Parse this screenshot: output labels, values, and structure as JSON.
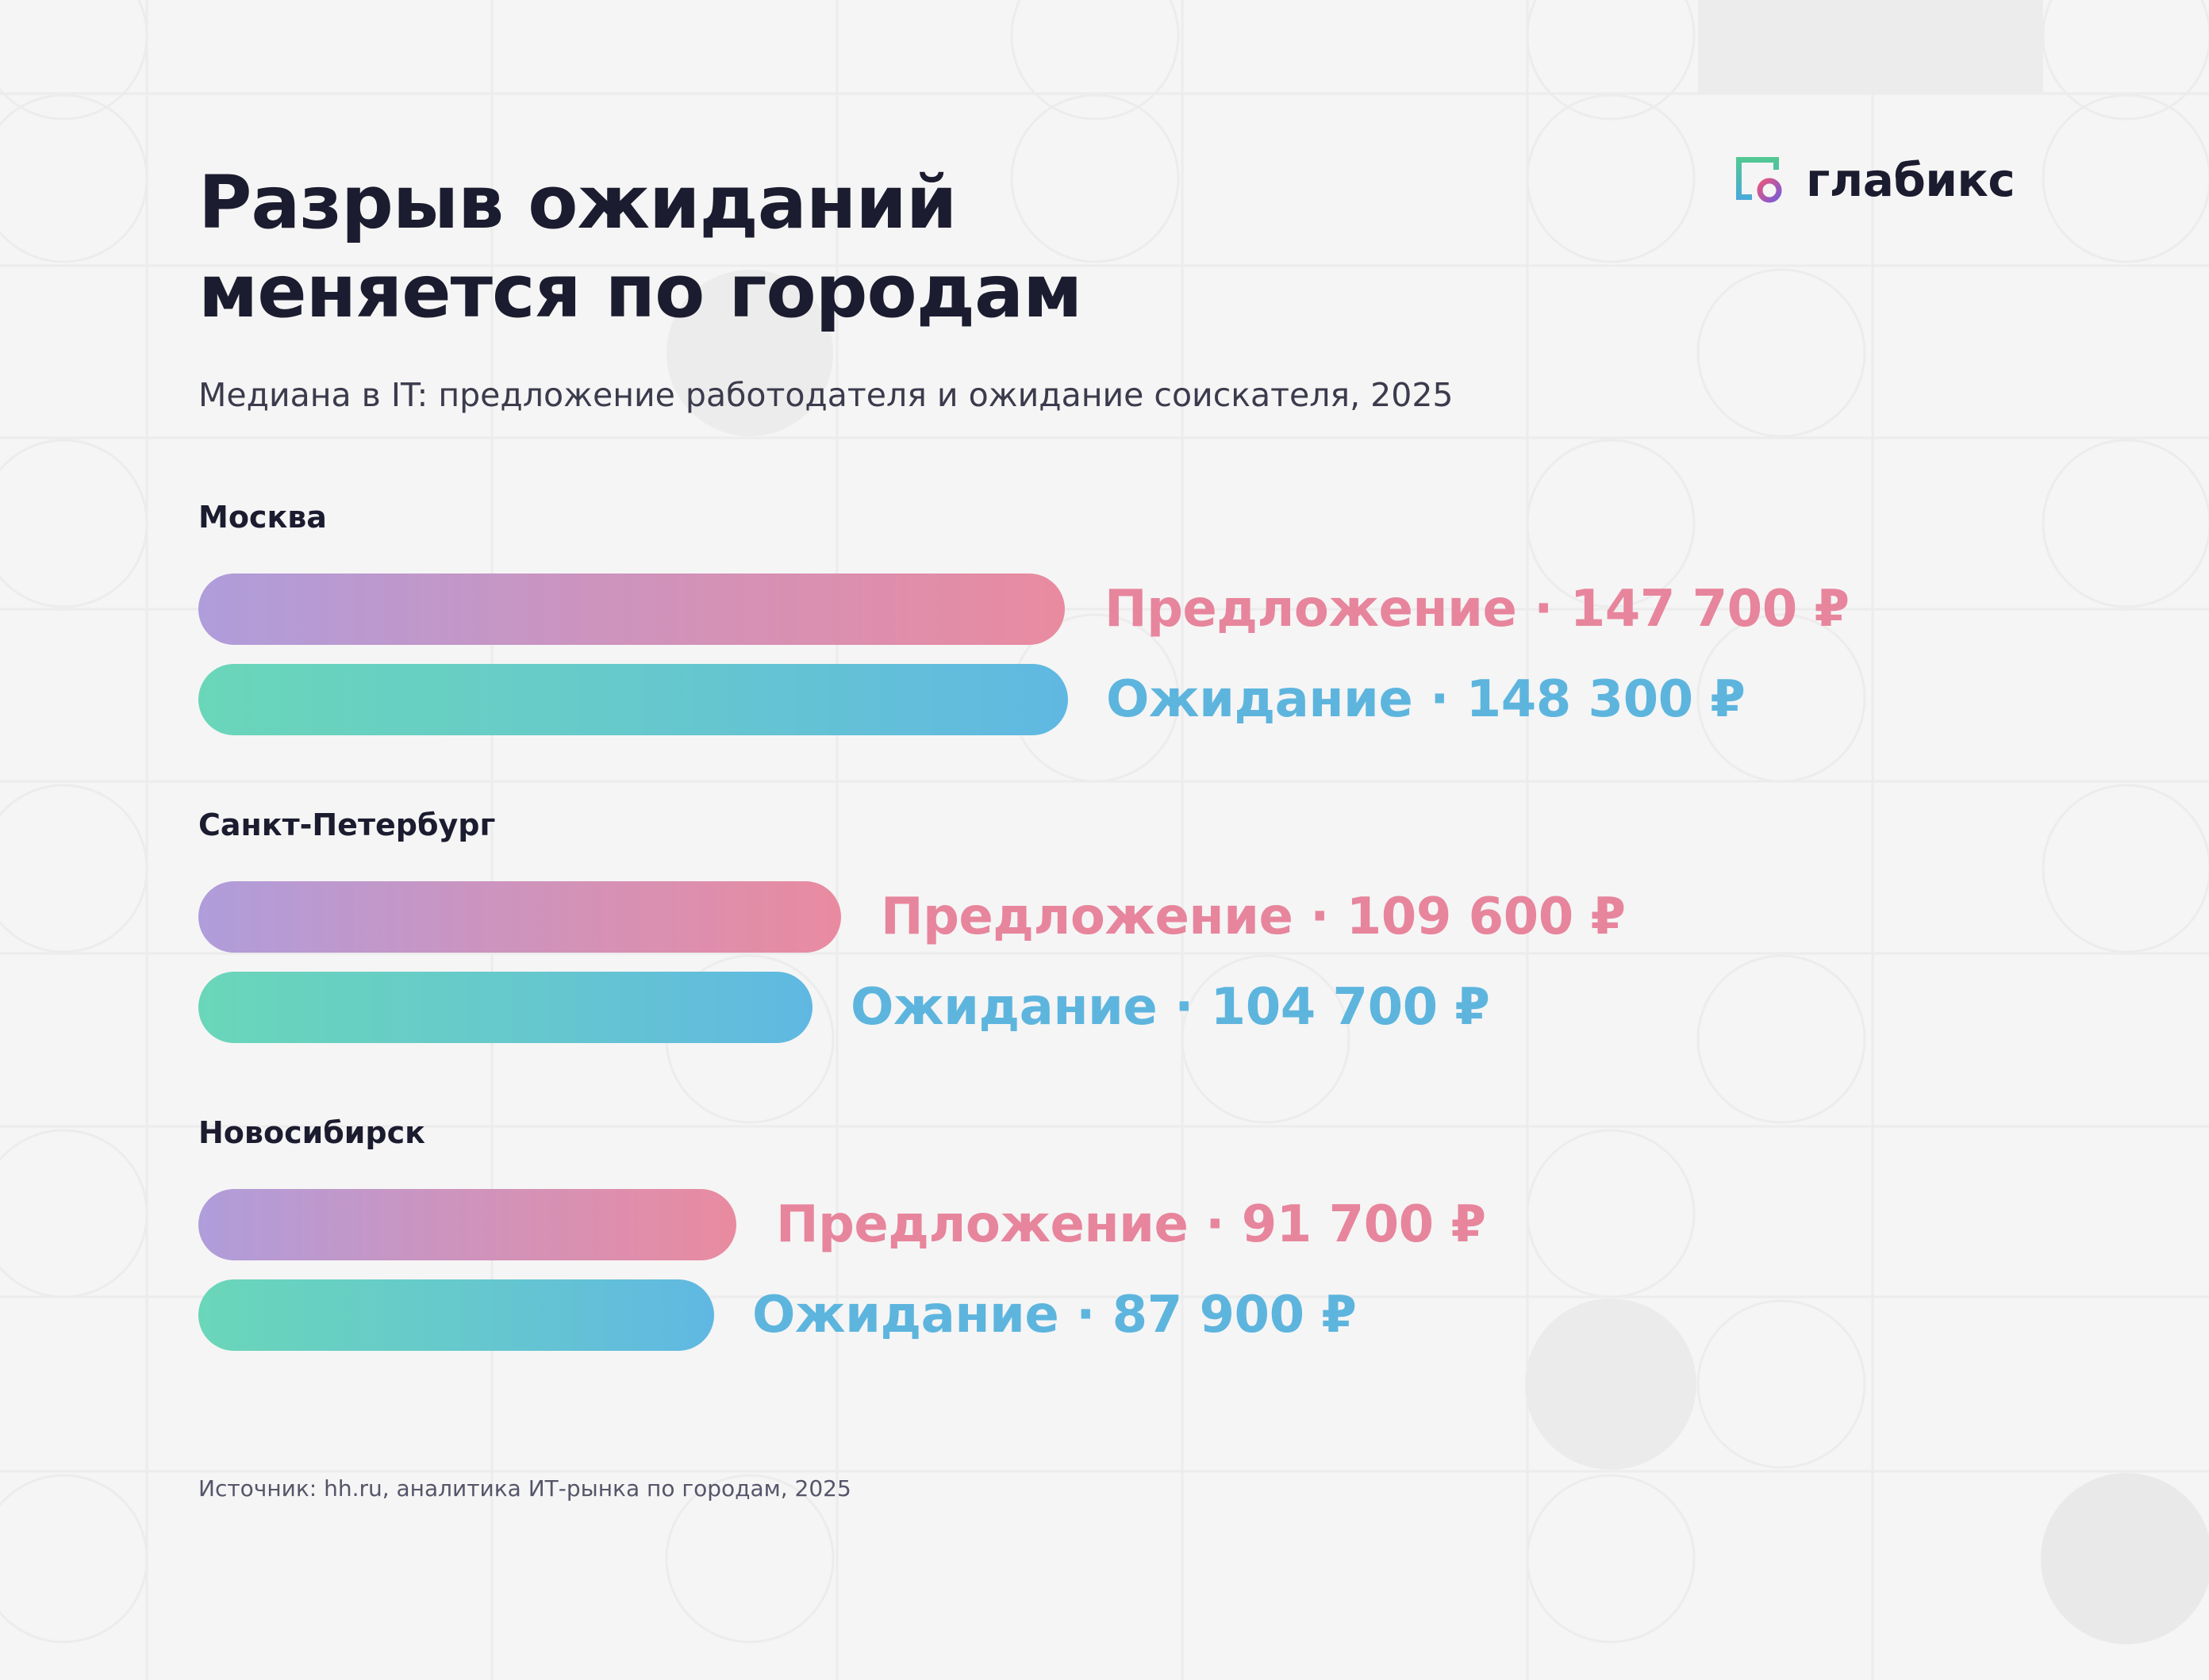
{
  "title_line1": "Разрыв ожиданий",
  "title_line2": "меняется по городам",
  "subtitle": "Медиана в IT: предложение работодателя и ожидание соискателя, 2025",
  "logo": {
    "text": "глабикс",
    "icon": "glabix-logo-icon"
  },
  "source": "Источник: hh.ru, аналитика ИТ-рынка по городам, 2025",
  "colors": {
    "offer": "#e7859d",
    "expectation": "#5db5de",
    "title": "#1c1c30",
    "background": "#f5f5f5"
  },
  "chart_data": {
    "type": "bar",
    "orientation": "horizontal",
    "categories": [
      "Москва",
      "Санкт-Петербург",
      "Новосибирск"
    ],
    "series": [
      {
        "name": "Предложение",
        "values": [
          147700,
          109600,
          91700
        ],
        "labels": [
          "Предложение · 147 700 ₽",
          "Предложение · 109 600 ₽",
          "Предложение · 91 700 ₽"
        ]
      },
      {
        "name": "Ожидание",
        "values": [
          148300,
          104700,
          87900
        ],
        "labels": [
          "Ожидание · 148 300 ₽",
          "Ожидание · 104 700 ₽",
          "Ожидание · 87 900 ₽"
        ]
      }
    ],
    "unit": "₽",
    "grid": false,
    "legend": "none"
  }
}
